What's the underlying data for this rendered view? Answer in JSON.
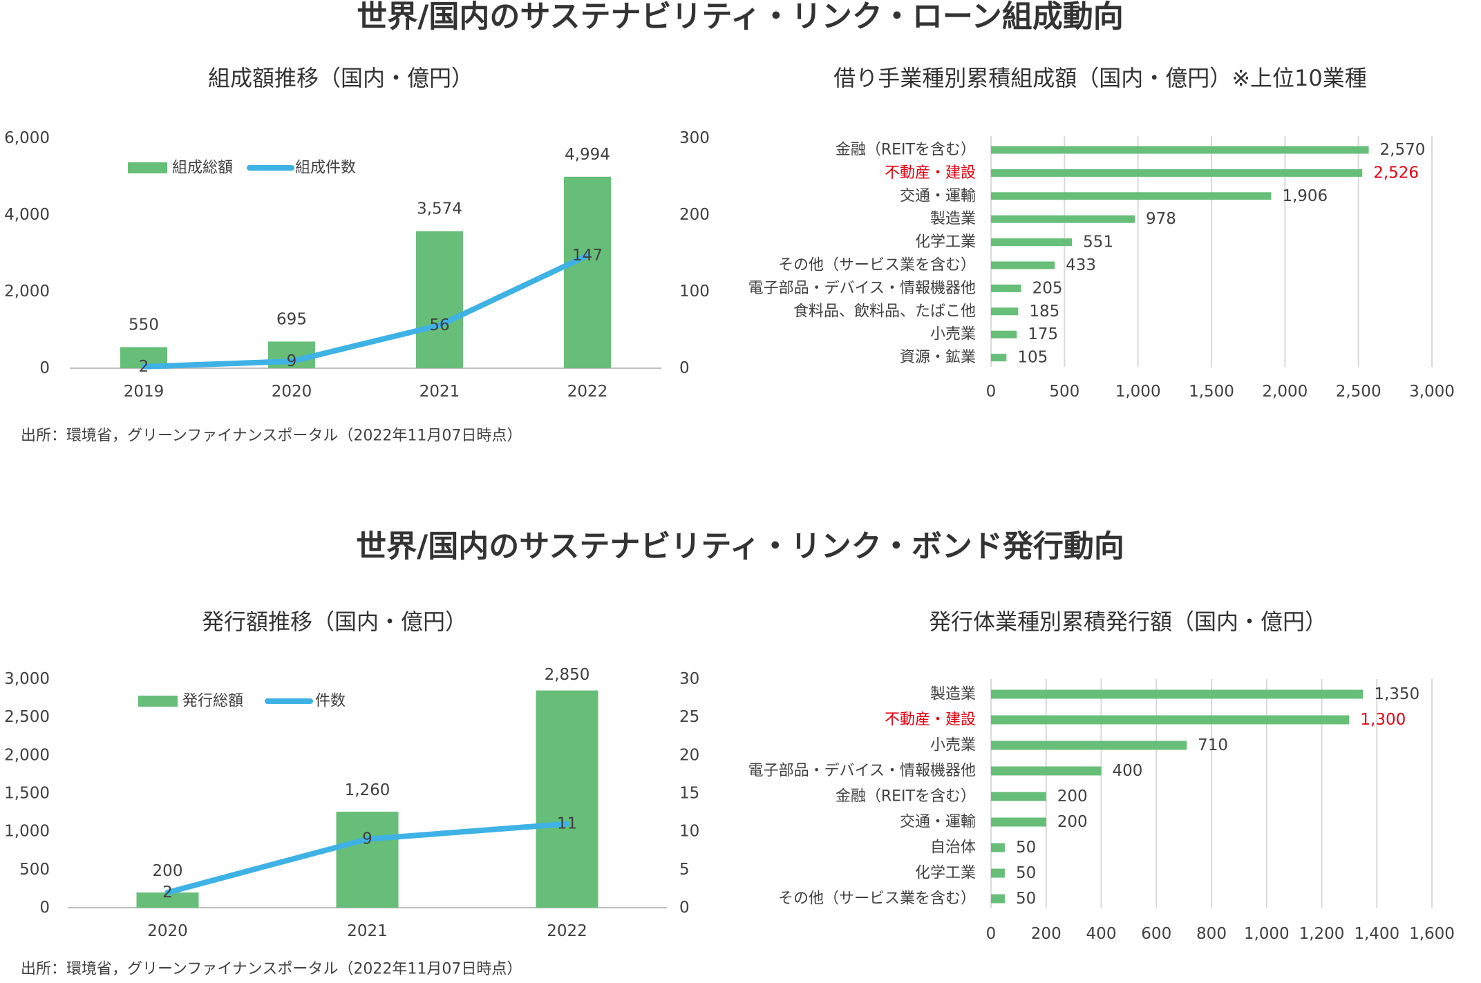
{
  "sections": [
    {
      "title": "世界/国内のサステナビリティ・リンク・ローン組成動向",
      "source": "出所：環境省，グリーンファイナンスポータル（2022年11月07日時点）"
    },
    {
      "title": "世界/国内のサステナビリティ・リンク・ボンド発行動向",
      "source": "出所：環境省，グリーンファイナンスポータル（2022年11月07日時点）"
    }
  ],
  "colors": {
    "bar": "#67BE78",
    "line": "#3FB2E5",
    "highlight": "#E60012",
    "grid": "#D9D9D9",
    "axis": "#BFBFBF"
  },
  "chart_data": [
    {
      "type": "bar",
      "title": "組成額推移（国内・億円）",
      "categories": [
        "2019",
        "2020",
        "2021",
        "2022"
      ],
      "series": [
        {
          "name": "組成総額",
          "type": "bar",
          "axis": "left",
          "values": [
            550,
            695,
            3574,
            4994
          ],
          "labels": [
            "550",
            "695",
            "3,574",
            "4,994"
          ]
        },
        {
          "name": "組成件数",
          "type": "line",
          "axis": "right",
          "values": [
            2,
            9,
            56,
            147
          ],
          "labels": [
            "2",
            "9",
            "56",
            "147"
          ]
        }
      ],
      "ylim": [
        0,
        6000
      ],
      "y_ticks": [
        "0",
        "2,000",
        "4,000",
        "6,000"
      ],
      "y2lim": [
        0,
        300
      ],
      "y2_ticks": [
        "0",
        "100",
        "200",
        "300"
      ],
      "legend": "top-left",
      "grid": false
    },
    {
      "type": "bar",
      "orientation": "horizontal",
      "title": "借り手業種別累積組成額（国内・億円）※上位10業種",
      "categories": [
        "金融（REITを含む）",
        "不動産・建設",
        "交通・運輸",
        "製造業",
        "化学工業",
        "その他（サービス業を含む）",
        "電子部品・デバイス・情報機器他",
        "食料品、飲料品、たばこ他",
        "小売業",
        "資源・鉱業"
      ],
      "values": [
        2570,
        2526,
        1906,
        978,
        551,
        433,
        205,
        185,
        175,
        105
      ],
      "labels": [
        "2,570",
        "2,526",
        "1,906",
        "978",
        "551",
        "433",
        "205",
        "185",
        "175",
        "105"
      ],
      "highlight_index": 1,
      "xlim": [
        0,
        3000
      ],
      "x_ticks": [
        "0",
        "500",
        "1,000",
        "1,500",
        "2,000",
        "2,500",
        "3,000"
      ],
      "grid": true
    },
    {
      "type": "bar",
      "title": "発行額推移（国内・億円）",
      "categories": [
        "2020",
        "2021",
        "2022"
      ],
      "series": [
        {
          "name": "発行総額",
          "type": "bar",
          "axis": "left",
          "values": [
            200,
            1260,
            2850
          ],
          "labels": [
            "200",
            "1,260",
            "2,850"
          ]
        },
        {
          "name": "件数",
          "type": "line",
          "axis": "right",
          "values": [
            2,
            9,
            11
          ],
          "labels": [
            "2",
            "9",
            "11"
          ]
        }
      ],
      "ylim": [
        0,
        3000
      ],
      "y_ticks": [
        "0",
        "500",
        "1,000",
        "1,500",
        "2,000",
        "2,500",
        "3,000"
      ],
      "y2lim": [
        0,
        30
      ],
      "y2_ticks": [
        "0",
        "5",
        "10",
        "15",
        "20",
        "25",
        "30"
      ],
      "legend": "top-left",
      "grid": false
    },
    {
      "type": "bar",
      "orientation": "horizontal",
      "title": "発行体業種別累積発行額（国内・億円）",
      "categories": [
        "製造業",
        "不動産・建設",
        "小売業",
        "電子部品・デバイス・情報機器他",
        "金融（REITを含む）",
        "交通・運輸",
        "自治体",
        "化学工業",
        "その他（サービス業を含む）"
      ],
      "values": [
        1350,
        1300,
        710,
        400,
        200,
        200,
        50,
        50,
        50
      ],
      "labels": [
        "1,350",
        "1,300",
        "710",
        "400",
        "200",
        "200",
        "50",
        "50",
        "50"
      ],
      "highlight_index": 1,
      "xlim": [
        0,
        1600
      ],
      "x_ticks": [
        "0",
        "200",
        "400",
        "600",
        "800",
        "1,000",
        "1,200",
        "1,400",
        "1,600"
      ],
      "grid": true
    }
  ]
}
